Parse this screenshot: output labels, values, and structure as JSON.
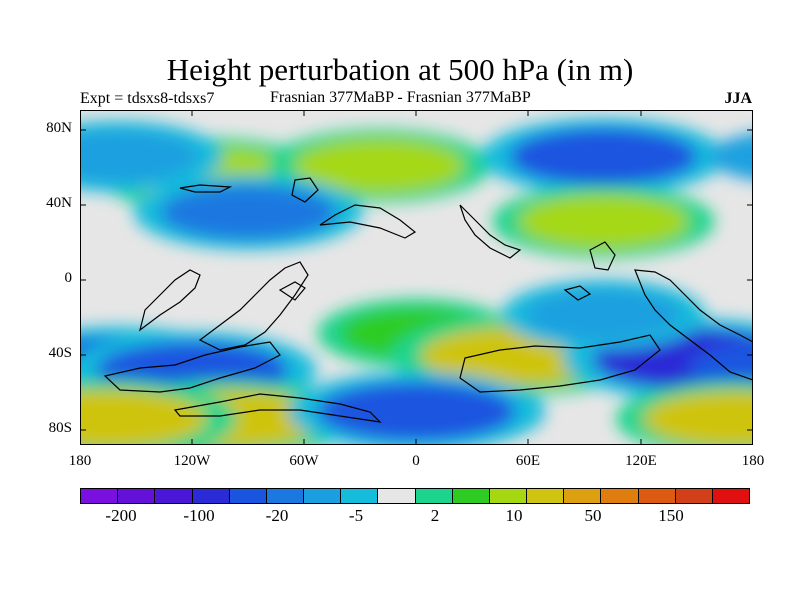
{
  "title": "Height perturbation at 500 hPa (in m)",
  "subtitle_left": "Expt = tdsxs8-tdsxs7",
  "subtitle_center": "Frasnian 377MaBP - Frasnian 377MaBP",
  "subtitle_right": "JJA",
  "y_ticks": [
    "80N",
    "40N",
    "0",
    "40S",
    "80S"
  ],
  "x_ticks": [
    "180",
    "120W",
    "60W",
    "0",
    "60E",
    "120E",
    "180"
  ],
  "colorbar": {
    "colors": [
      "#7a10e0",
      "#6510d8",
      "#4a17d6",
      "#2a2ad6",
      "#1a55e0",
      "#1a78e0",
      "#1aa0e0",
      "#15bcdc",
      "#e6e6e6",
      "#1cd48e",
      "#2ecc22",
      "#a5d812",
      "#cfc411",
      "#dca010",
      "#df7d0f",
      "#dd5a12",
      "#d2401a",
      "#e01010"
    ],
    "labels": [
      "-200",
      "-100",
      "-20",
      "-5",
      "2",
      "10",
      "50",
      "150"
    ]
  },
  "chart_data": {
    "type": "heatmap",
    "title": "Height perturbation at 500 hPa (in m)",
    "x_range": [
      -180,
      180
    ],
    "y_range": [
      -90,
      90
    ],
    "x_ticks": [
      -180,
      -120,
      -60,
      0,
      60,
      120,
      180
    ],
    "y_ticks": [
      80,
      40,
      0,
      -40,
      -80
    ],
    "levels": [
      -200,
      -150,
      -100,
      -50,
      -20,
      -10,
      -5,
      -2,
      2,
      5,
      10,
      20,
      50,
      100,
      150,
      200
    ],
    "anomalies": [
      {
        "lon": 0,
        "lat": -30,
        "value": 5
      },
      {
        "lon": 55,
        "lat": -42,
        "value": 40
      },
      {
        "lon": 150,
        "lat": -44,
        "value": -60
      },
      {
        "lon": -160,
        "lat": -48,
        "value": -50
      },
      {
        "lon": -120,
        "lat": -50,
        "value": -30
      },
      {
        "lon": -100,
        "lat": -76,
        "value": 35
      },
      {
        "lon": 0,
        "lat": -72,
        "value": -40
      },
      {
        "lon": -165,
        "lat": -76,
        "value": 40
      },
      {
        "lon": 170,
        "lat": -76,
        "value": 20
      },
      {
        "lon": -110,
        "lat": 55,
        "value": 15
      },
      {
        "lon": -20,
        "lat": 60,
        "value": 12
      },
      {
        "lon": 100,
        "lat": 65,
        "value": -25
      },
      {
        "lon": -160,
        "lat": 65,
        "value": -8
      },
      {
        "lon": 100,
        "lat": 30,
        "value": 12
      },
      {
        "lon": -90,
        "lat": 35,
        "value": -15
      },
      {
        "lon": 100,
        "lat": -20,
        "value": -6
      }
    ]
  }
}
